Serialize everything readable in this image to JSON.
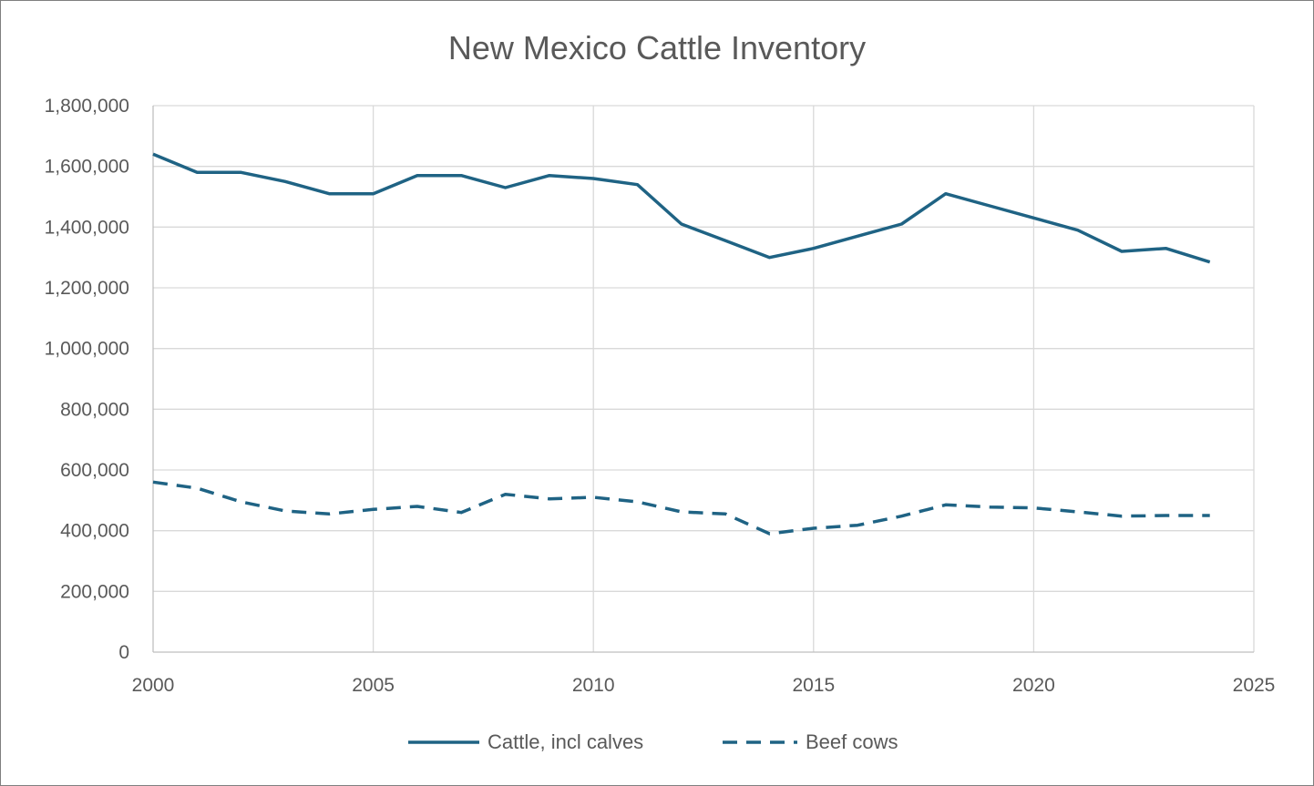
{
  "chart_data": {
    "type": "line",
    "title": "New Mexico Cattle Inventory",
    "xlabel": "",
    "ylabel": "",
    "xlim": [
      2000,
      2025
    ],
    "ylim": [
      0,
      1800000
    ],
    "x_ticks": [
      2000,
      2005,
      2010,
      2015,
      2020,
      2025
    ],
    "x_tick_labels": [
      "2000",
      "2005",
      "2010",
      "2015",
      "2020",
      "2025"
    ],
    "y_ticks": [
      0,
      200000,
      400000,
      600000,
      800000,
      1000000,
      1200000,
      1400000,
      1600000,
      1800000
    ],
    "y_tick_labels": [
      "0",
      "200,000",
      "400,000",
      "600,000",
      "800,000",
      "1,000,000",
      "1,200,000",
      "1,400,000",
      "1,600,000",
      "1,800,000"
    ],
    "grid": true,
    "legend_position": "bottom",
    "series_color": "#1f6384",
    "series": [
      {
        "name": "Cattle, incl calves",
        "style": "solid",
        "x": [
          2000,
          2001,
          2002,
          2003,
          2004,
          2005,
          2006,
          2007,
          2008,
          2009,
          2010,
          2011,
          2012,
          2013,
          2014,
          2015,
          2016,
          2017,
          2018,
          2019,
          2020,
          2021,
          2022,
          2023,
          2024
        ],
        "values": [
          1640000,
          1580000,
          1580000,
          1550000,
          1510000,
          1510000,
          1570000,
          1570000,
          1530000,
          1570000,
          1560000,
          1540000,
          1410000,
          1355000,
          1300000,
          1330000,
          1370000,
          1410000,
          1510000,
          1470000,
          1430000,
          1390000,
          1320000,
          1330000,
          1285000
        ]
      },
      {
        "name": "Beef cows",
        "style": "dashed",
        "x": [
          2000,
          2001,
          2002,
          2003,
          2004,
          2005,
          2006,
          2007,
          2008,
          2009,
          2010,
          2011,
          2012,
          2013,
          2014,
          2015,
          2016,
          2017,
          2018,
          2019,
          2020,
          2021,
          2022,
          2023,
          2024
        ],
        "values": [
          560000,
          540000,
          495000,
          465000,
          455000,
          470000,
          480000,
          460000,
          520000,
          505000,
          510000,
          495000,
          462000,
          455000,
          390000,
          408000,
          418000,
          448000,
          485000,
          478000,
          475000,
          462000,
          448000,
          450000,
          450000
        ]
      }
    ]
  }
}
